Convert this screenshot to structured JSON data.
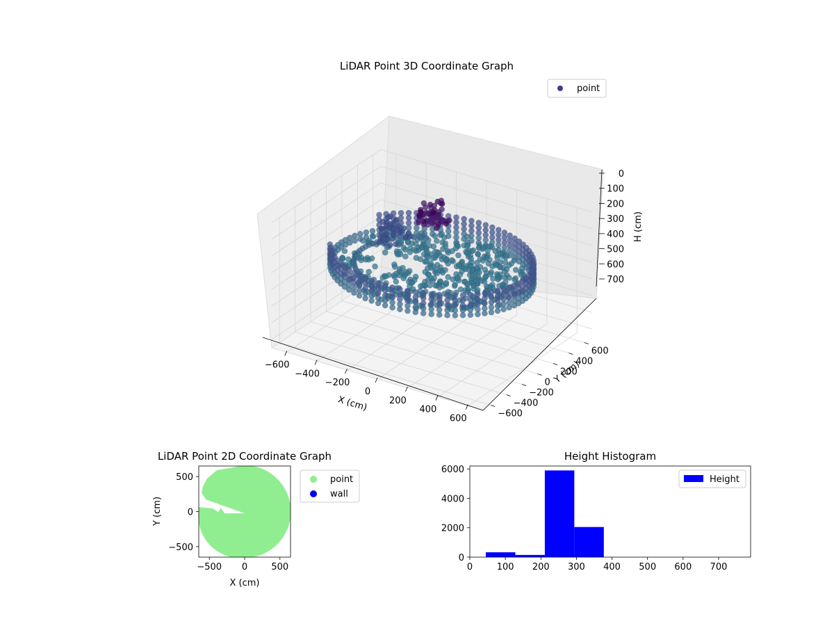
{
  "chart_data": [
    {
      "type": "scatter",
      "projection": "3d",
      "title": "LiDAR Point 3D Coordinate Graph",
      "xlabel": "X (cm)",
      "ylabel": "Y (cm)",
      "zlabel": "H (cm)",
      "xlim": [
        -700,
        700
      ],
      "ylim": [
        -700,
        700
      ],
      "zlim": [
        750,
        0
      ],
      "z_axis_inverted": true,
      "xticks": [
        -600,
        -400,
        -200,
        0,
        200,
        400,
        600
      ],
      "yticks": [
        -600,
        -400,
        -200,
        0,
        200,
        400,
        600
      ],
      "zticks": [
        0,
        100,
        200,
        300,
        400,
        500,
        600,
        700
      ],
      "grid": true,
      "legend_position": "top-right",
      "colormap": "viridis",
      "series": [
        {
          "name": "point",
          "color": "#453a8a",
          "description_shape": "circular wall of radius ~600 cm at height ~300 cm with interior floor points and a darker cluster near height ~150 cm",
          "sample_points": [
            {
              "x": 600,
              "y": 0,
              "h": 300
            },
            {
              "x": 0,
              "y": 600,
              "h": 300
            },
            {
              "x": -600,
              "y": 0,
              "h": 300
            },
            {
              "x": 0,
              "y": -600,
              "h": 300
            },
            {
              "x": 425,
              "y": 425,
              "h": 300
            },
            {
              "x": -425,
              "y": 425,
              "h": 300
            },
            {
              "x": -425,
              "y": -425,
              "h": 300
            },
            {
              "x": 425,
              "y": -425,
              "h": 300
            },
            {
              "x": 0,
              "y": 0,
              "h": 320
            },
            {
              "x": -150,
              "y": 350,
              "h": 150
            },
            {
              "x": -250,
              "y": 300,
              "h": 120
            },
            {
              "x": -200,
              "y": 420,
              "h": 80
            }
          ]
        }
      ]
    },
    {
      "type": "scatter",
      "title": "LiDAR Point 2D Coordinate Graph",
      "xlabel": "X (cm)",
      "ylabel": "Y (cm)",
      "xlim": [
        -650,
        650
      ],
      "ylim": [
        -650,
        650
      ],
      "xticks": [
        -500,
        0,
        500
      ],
      "yticks": [
        -500,
        0,
        500
      ],
      "legend_position": "outside-right",
      "series": [
        {
          "name": "point",
          "color": "#90ee90",
          "description_shape": "filled disk of radius ~600 cm with a notch cut in from the left near y = 0"
        },
        {
          "name": "wall",
          "color": "#0000ff",
          "points": []
        }
      ]
    },
    {
      "type": "bar",
      "subtype": "histogram",
      "title": "Height Histogram",
      "xlim": [
        0,
        790
      ],
      "ylim": [
        0,
        6200
      ],
      "xticks": [
        0,
        100,
        200,
        300,
        400,
        500,
        600,
        700
      ],
      "yticks": [
        0,
        2000,
        4000,
        6000
      ],
      "legend_position": "top-right",
      "series": [
        {
          "name": "Height",
          "color": "#0000ff",
          "bin_edges": [
            45,
            128,
            211,
            294,
            377,
            460,
            543,
            626,
            709
          ],
          "values": [
            330,
            150,
            5900,
            2050,
            0,
            0,
            0,
            0
          ]
        }
      ]
    }
  ]
}
